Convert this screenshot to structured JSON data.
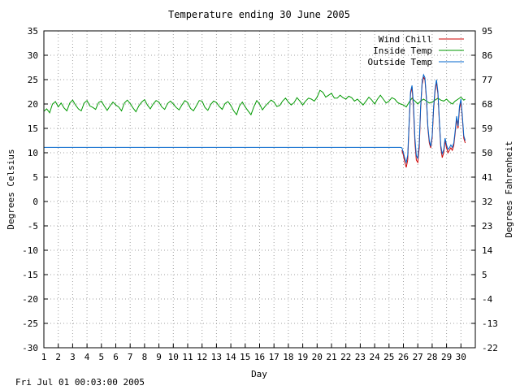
{
  "chart_data": {
    "type": "line",
    "title": "Temperature ending 30 June 2005",
    "xlabel": "Day",
    "ylabel": "Degrees Celsius",
    "y2label": "Degrees Fahrenheit",
    "x_ticks": [
      "1",
      "2",
      "3",
      "4",
      "5",
      "6",
      "7",
      "8",
      "9",
      "10",
      "11",
      "12",
      "13",
      "14",
      "15",
      "16",
      "17",
      "18",
      "19",
      "20",
      "21",
      "22",
      "23",
      "24",
      "25",
      "26",
      "27",
      "28",
      "29",
      "30"
    ],
    "xlim": [
      1,
      31
    ],
    "ylim": [
      -30,
      35
    ],
    "y_ticks": [
      35,
      30,
      25,
      20,
      15,
      10,
      5,
      0,
      -5,
      -10,
      -15,
      -20,
      -25,
      -30
    ],
    "y2_ticks": [
      95,
      86,
      77,
      68,
      59,
      50,
      41,
      32,
      23,
      14,
      5,
      -4,
      -13,
      -22
    ],
    "grid": true,
    "legend_position": "top-right",
    "series": [
      {
        "name": "Wind Chill",
        "color": "#cc0000",
        "points": [
          [
            25.9,
            10.5
          ],
          [
            26.0,
            9.5
          ],
          [
            26.1,
            8.0
          ],
          [
            26.2,
            7.0
          ],
          [
            26.3,
            8.5
          ],
          [
            26.4,
            16.0
          ],
          [
            26.5,
            22.0
          ],
          [
            26.6,
            23.5
          ],
          [
            26.7,
            19.0
          ],
          [
            26.8,
            12.0
          ],
          [
            26.9,
            8.5
          ],
          [
            27.0,
            8.0
          ],
          [
            27.1,
            11.0
          ],
          [
            27.2,
            19.0
          ],
          [
            27.3,
            24.0
          ],
          [
            27.4,
            25.5
          ],
          [
            27.5,
            25.0
          ],
          [
            27.6,
            21.0
          ],
          [
            27.7,
            15.0
          ],
          [
            27.8,
            12.0
          ],
          [
            27.9,
            11.0
          ],
          [
            28.0,
            13.0
          ],
          [
            28.1,
            19.0
          ],
          [
            28.2,
            22.5
          ],
          [
            28.3,
            24.5
          ],
          [
            28.4,
            22.0
          ],
          [
            28.5,
            16.0
          ],
          [
            28.6,
            11.0
          ],
          [
            28.7,
            9.0
          ],
          [
            28.8,
            10.0
          ],
          [
            28.9,
            12.5
          ],
          [
            29.0,
            11.0
          ],
          [
            29.1,
            10.0
          ],
          [
            29.2,
            10.5
          ],
          [
            29.3,
            11.0
          ],
          [
            29.4,
            10.5
          ],
          [
            29.5,
            11.5
          ],
          [
            29.6,
            14.0
          ],
          [
            29.7,
            17.0
          ],
          [
            29.8,
            15.0
          ],
          [
            29.9,
            19.0
          ],
          [
            30.0,
            20.5
          ],
          [
            30.1,
            17.0
          ],
          [
            30.2,
            13.0
          ],
          [
            30.3,
            12.0
          ]
        ]
      },
      {
        "name": "Inside Temp",
        "color": "#009900",
        "points": [
          [
            1.0,
            18.5
          ],
          [
            1.2,
            19.0
          ],
          [
            1.4,
            18.2
          ],
          [
            1.6,
            20.0
          ],
          [
            1.8,
            20.5
          ],
          [
            2.0,
            19.4
          ],
          [
            2.2,
            20.2
          ],
          [
            2.4,
            19.2
          ],
          [
            2.6,
            18.6
          ],
          [
            2.8,
            20.2
          ],
          [
            3.0,
            20.8
          ],
          [
            3.2,
            19.8
          ],
          [
            3.4,
            19.0
          ],
          [
            3.6,
            18.6
          ],
          [
            3.8,
            20.2
          ],
          [
            4.0,
            20.7
          ],
          [
            4.2,
            19.6
          ],
          [
            4.4,
            19.3
          ],
          [
            4.6,
            18.9
          ],
          [
            4.8,
            20.3
          ],
          [
            5.0,
            20.6
          ],
          [
            5.2,
            19.6
          ],
          [
            5.4,
            18.7
          ],
          [
            5.6,
            19.6
          ],
          [
            5.8,
            20.4
          ],
          [
            6.0,
            19.8
          ],
          [
            6.2,
            19.4
          ],
          [
            6.4,
            18.6
          ],
          [
            6.6,
            20.2
          ],
          [
            6.8,
            20.8
          ],
          [
            7.0,
            20.1
          ],
          [
            7.2,
            19.2
          ],
          [
            7.4,
            18.4
          ],
          [
            7.6,
            19.6
          ],
          [
            7.8,
            20.4
          ],
          [
            8.0,
            20.9
          ],
          [
            8.2,
            19.8
          ],
          [
            8.4,
            19.0
          ],
          [
            8.6,
            20.0
          ],
          [
            8.8,
            20.7
          ],
          [
            9.0,
            20.4
          ],
          [
            9.2,
            19.4
          ],
          [
            9.4,
            18.9
          ],
          [
            9.6,
            20.1
          ],
          [
            9.8,
            20.6
          ],
          [
            10.0,
            20.0
          ],
          [
            10.2,
            19.3
          ],
          [
            10.4,
            18.8
          ],
          [
            10.6,
            19.8
          ],
          [
            10.8,
            20.7
          ],
          [
            11.0,
            20.3
          ],
          [
            11.2,
            19.1
          ],
          [
            11.4,
            18.6
          ],
          [
            11.6,
            19.6
          ],
          [
            11.8,
            20.7
          ],
          [
            12.0,
            20.6
          ],
          [
            12.2,
            19.3
          ],
          [
            12.4,
            18.7
          ],
          [
            12.6,
            19.9
          ],
          [
            12.8,
            20.6
          ],
          [
            13.0,
            20.3
          ],
          [
            13.2,
            19.5
          ],
          [
            13.4,
            18.9
          ],
          [
            13.6,
            20.1
          ],
          [
            13.8,
            20.5
          ],
          [
            14.0,
            19.7
          ],
          [
            14.2,
            18.6
          ],
          [
            14.4,
            17.8
          ],
          [
            14.6,
            19.6
          ],
          [
            14.8,
            20.4
          ],
          [
            15.0,
            19.4
          ],
          [
            15.2,
            18.6
          ],
          [
            15.4,
            17.8
          ],
          [
            15.6,
            19.4
          ],
          [
            15.8,
            20.7
          ],
          [
            16.0,
            20.0
          ],
          [
            16.2,
            18.8
          ],
          [
            16.4,
            19.6
          ],
          [
            16.6,
            20.2
          ],
          [
            16.8,
            20.8
          ],
          [
            17.0,
            20.4
          ],
          [
            17.2,
            19.5
          ],
          [
            17.4,
            19.7
          ],
          [
            17.6,
            20.6
          ],
          [
            17.8,
            21.2
          ],
          [
            18.0,
            20.4
          ],
          [
            18.2,
            19.8
          ],
          [
            18.4,
            20.3
          ],
          [
            18.6,
            21.3
          ],
          [
            18.8,
            20.6
          ],
          [
            19.0,
            19.8
          ],
          [
            19.2,
            20.6
          ],
          [
            19.4,
            21.2
          ],
          [
            19.6,
            21.0
          ],
          [
            19.8,
            20.6
          ],
          [
            20.0,
            21.4
          ],
          [
            20.2,
            22.8
          ],
          [
            20.4,
            22.4
          ],
          [
            20.6,
            21.4
          ],
          [
            20.8,
            21.8
          ],
          [
            21.0,
            22.2
          ],
          [
            21.2,
            21.2
          ],
          [
            21.4,
            21.2
          ],
          [
            21.6,
            21.8
          ],
          [
            21.8,
            21.3
          ],
          [
            22.0,
            21.0
          ],
          [
            22.2,
            21.6
          ],
          [
            22.4,
            21.3
          ],
          [
            22.6,
            20.6
          ],
          [
            22.8,
            21.0
          ],
          [
            23.0,
            20.4
          ],
          [
            23.2,
            19.8
          ],
          [
            23.4,
            20.6
          ],
          [
            23.6,
            21.4
          ],
          [
            23.8,
            20.8
          ],
          [
            24.0,
            20.0
          ],
          [
            24.2,
            21.0
          ],
          [
            24.4,
            21.8
          ],
          [
            24.6,
            21.0
          ],
          [
            24.8,
            20.2
          ],
          [
            25.0,
            20.6
          ],
          [
            25.2,
            21.3
          ],
          [
            25.4,
            21.0
          ],
          [
            25.6,
            20.3
          ],
          [
            25.8,
            20.0
          ],
          [
            26.0,
            19.8
          ],
          [
            26.2,
            19.4
          ],
          [
            26.4,
            20.4
          ],
          [
            26.6,
            21.2
          ],
          [
            26.8,
            20.6
          ],
          [
            27.0,
            20.0
          ],
          [
            27.2,
            20.6
          ],
          [
            27.4,
            21.0
          ],
          [
            27.6,
            20.6
          ],
          [
            27.8,
            20.2
          ],
          [
            28.0,
            20.4
          ],
          [
            28.2,
            20.8
          ],
          [
            28.4,
            21.2
          ],
          [
            28.6,
            20.8
          ],
          [
            28.8,
            20.6
          ],
          [
            29.0,
            21.0
          ],
          [
            29.2,
            20.4
          ],
          [
            29.4,
            20.0
          ],
          [
            29.6,
            20.6
          ],
          [
            29.8,
            21.0
          ],
          [
            30.0,
            21.4
          ],
          [
            30.2,
            20.8
          ],
          [
            30.3,
            21.0
          ]
        ]
      },
      {
        "name": "Outside Temp",
        "color": "#0066cc",
        "points": [
          [
            1.0,
            11.1
          ],
          [
            25.8,
            11.1
          ],
          [
            25.9,
            11.0
          ],
          [
            26.0,
            10.0
          ],
          [
            26.1,
            8.8
          ],
          [
            26.2,
            8.0
          ],
          [
            26.3,
            9.5
          ],
          [
            26.4,
            16.5
          ],
          [
            26.5,
            22.5
          ],
          [
            26.6,
            23.8
          ],
          [
            26.7,
            20.0
          ],
          [
            26.8,
            13.0
          ],
          [
            26.9,
            9.5
          ],
          [
            27.0,
            8.8
          ],
          [
            27.1,
            12.0
          ],
          [
            27.2,
            19.5
          ],
          [
            27.3,
            24.5
          ],
          [
            27.4,
            26.0
          ],
          [
            27.5,
            25.4
          ],
          [
            27.6,
            21.5
          ],
          [
            27.7,
            15.5
          ],
          [
            27.8,
            12.5
          ],
          [
            27.9,
            11.3
          ],
          [
            28.0,
            13.5
          ],
          [
            28.1,
            19.5
          ],
          [
            28.2,
            23.0
          ],
          [
            28.3,
            25.0
          ],
          [
            28.4,
            22.5
          ],
          [
            28.5,
            16.5
          ],
          [
            28.6,
            11.5
          ],
          [
            28.7,
            9.8
          ],
          [
            28.8,
            10.6
          ],
          [
            28.9,
            13.0
          ],
          [
            29.0,
            11.6
          ],
          [
            29.1,
            10.7
          ],
          [
            29.2,
            11.0
          ],
          [
            29.3,
            11.6
          ],
          [
            29.4,
            11.1
          ],
          [
            29.5,
            12.0
          ],
          [
            29.6,
            14.5
          ],
          [
            29.7,
            17.5
          ],
          [
            29.8,
            15.5
          ],
          [
            29.9,
            19.5
          ],
          [
            30.0,
            21.0
          ],
          [
            30.1,
            17.5
          ],
          [
            30.2,
            13.5
          ],
          [
            30.3,
            12.5
          ]
        ]
      }
    ]
  },
  "footer": {
    "timestamp": "Fri Jul 01 00:03:00 2005"
  }
}
